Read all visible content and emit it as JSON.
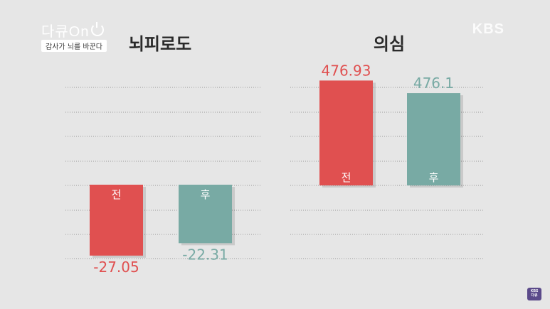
{
  "branding": {
    "program": "다큐On",
    "tagline": "감사가 뇌를 바꾼다",
    "broadcaster": "KBS",
    "corner_badge_top": "KBS",
    "corner_badge_bottom": "다큐"
  },
  "colors": {
    "before": "#e05050",
    "after": "#78aaa4",
    "grid": "#9a9a9a"
  },
  "chart_data": [
    {
      "type": "bar",
      "title": "뇌피로도",
      "categories": [
        "전",
        "후"
      ],
      "values": [
        -27.05,
        -22.31
      ],
      "value_labels": [
        "-27.05",
        "-22.31"
      ],
      "ylim": [
        -30,
        40
      ],
      "grid": true
    },
    {
      "type": "bar",
      "title": "의심",
      "categories": [
        "전",
        "후"
      ],
      "values": [
        476.93,
        476.1
      ],
      "value_labels": [
        "476.93",
        "476.1"
      ],
      "ylim": [
        470,
        480
      ],
      "grid": true
    }
  ]
}
